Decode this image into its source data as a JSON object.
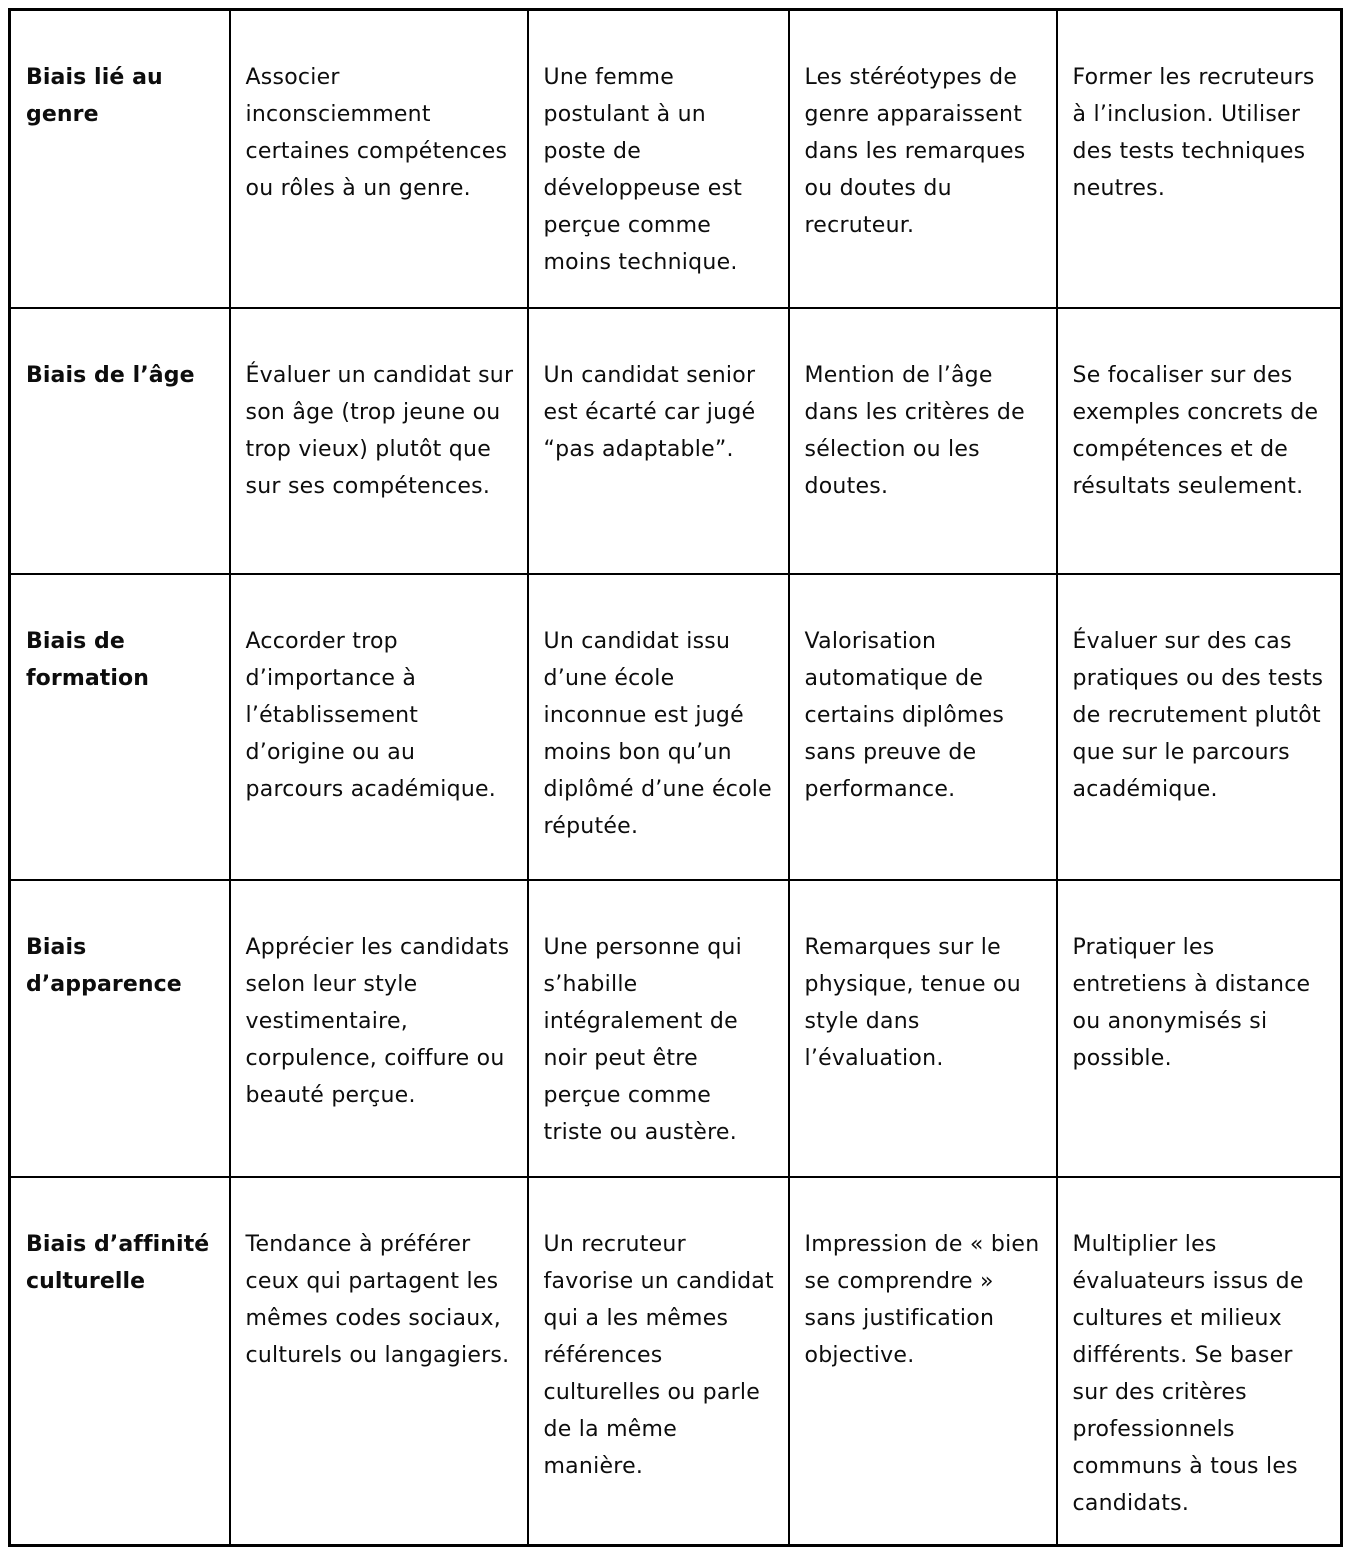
{
  "colors": {
    "border": "#000000",
    "text": "#0d0d0d",
    "background": "#ffffff"
  },
  "table": {
    "rows": [
      {
        "label": "Biais lié au genre",
        "cells": [
          "Associer inconsciemment certaines compétences ou rôles à un genre.",
          "Une femme postulant à un poste de développeuse est perçue comme moins technique.",
          "Les stéréotypes de genre apparaissent dans les remarques ou doutes du recruteur.",
          "Former les recruteurs à l’inclusion. Utiliser des tests techniques neutres."
        ]
      },
      {
        "label": "Biais de l’âge",
        "cells": [
          "Évaluer un candidat sur son âge (trop jeune ou trop vieux) plutôt que sur ses compétences.",
          "Un candidat senior est écarté car jugé “pas adaptable”.",
          "Mention de l’âge dans les critères de sélection ou les doutes.",
          "Se focaliser sur des exemples concrets de compétences et de résultats seulement."
        ]
      },
      {
        "label": "Biais de formation",
        "cells": [
          "Accorder trop d’importance à l’établissement d’origine ou au parcours académique.",
          "Un candidat issu d’une école inconnue est jugé moins bon qu’un diplômé d’une école réputée.",
          "Valorisation automatique de certains diplômes sans preuve de performance.",
          "Évaluer sur des cas pratiques ou des tests de recrutement plutôt que sur le parcours académique."
        ]
      },
      {
        "label": "Biais d’apparence",
        "cells": [
          "Apprécier les candidats selon leur style vestimentaire, corpulence, coiffure ou beauté perçue.",
          "Une personne qui s’habille intégralement de noir peut être perçue comme triste ou austère.",
          "Remarques sur le physique, tenue ou style dans l’évaluation.",
          "Pratiquer les entretiens à distance ou anonymisés si possible."
        ]
      },
      {
        "label": "Biais d’affinité culturelle",
        "cells": [
          "Tendance à préférer ceux qui partagent les mêmes codes sociaux, culturels ou langagiers.",
          "Un recruteur favorise un candidat qui a les mêmes références culturelles ou parle de la même manière.",
          "Impression de « bien se comprendre » sans justification objective.",
          "Multiplier les évaluateurs issus de cultures et milieux différents. Se baser sur des critères professionnels communs à tous les candidats."
        ]
      }
    ]
  }
}
